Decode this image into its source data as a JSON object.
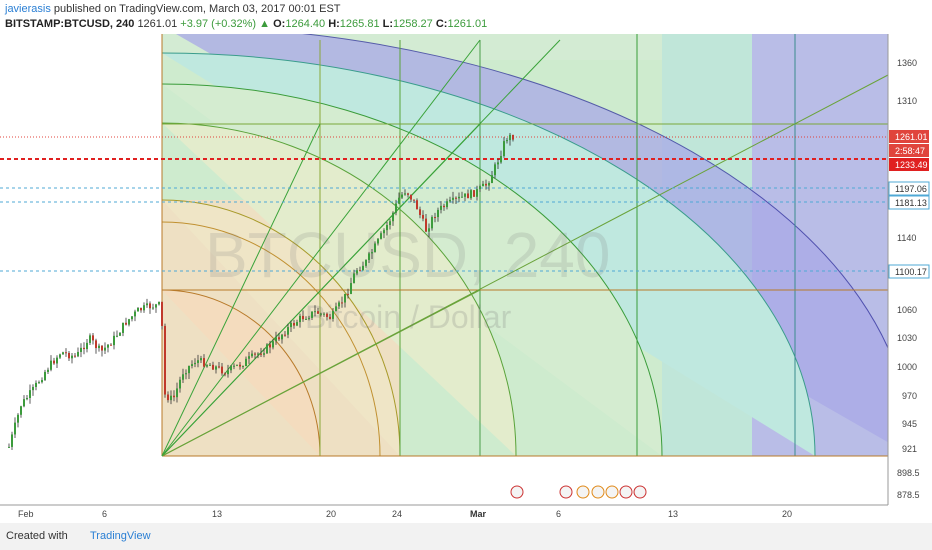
{
  "header": {
    "author": "javierasis",
    "published": "published on TradingView.com, March 03, 2017 00:01 EST",
    "symbol": "BITSTAMP:BTCUSD, 240",
    "last": "1261.01",
    "change": "+3.97 (+0.32%)",
    "o_label": "O:",
    "o_value": "1264.40",
    "h_label": "H:",
    "h_value": "1265.81",
    "l_label": "L:",
    "l_value": "1258.27",
    "c_label": "C:",
    "c_value": "1261.01"
  },
  "watermark": {
    "symbol": "BTCUSD, 240",
    "name": "Bitcoin / Dollar"
  },
  "footer": {
    "created": "Created with",
    "brand": "TradingView"
  },
  "colors": {
    "up": "#3c9b3c",
    "down": "#c0392b",
    "price_tag": "#e0443c",
    "support_line": "#4fa9d6",
    "red_line": "#e02020"
  },
  "chart_data": {
    "type": "candlestick",
    "y_ticks": [
      1360.0,
      1310.0,
      1261.01,
      1233.49,
      1197.06,
      1181.13,
      1140.0,
      1100.17,
      1060.0,
      1030.0,
      1000.0,
      970.0,
      945.0,
      921.0,
      898.5,
      878.5
    ],
    "x_ticks": [
      "Feb",
      "6",
      "13",
      "20",
      "24",
      "Mar",
      "6",
      "13",
      "20"
    ],
    "price_labels": [
      {
        "value": "1261.01",
        "kind": "last"
      },
      {
        "value": "2:58:47",
        "kind": "countdown"
      },
      {
        "value": "1233.49",
        "kind": "red-line"
      },
      {
        "value": "1197.06",
        "kind": "line"
      },
      {
        "value": "1181.13",
        "kind": "line"
      },
      {
        "value": "1100.17",
        "kind": "line"
      }
    ],
    "close_path": [
      {
        "x": 8,
        "y": 447
      },
      {
        "x": 20,
        "y": 405
      },
      {
        "x": 32,
        "y": 390
      },
      {
        "x": 45,
        "y": 370
      },
      {
        "x": 60,
        "y": 352
      },
      {
        "x": 75,
        "y": 357
      },
      {
        "x": 88,
        "y": 338
      },
      {
        "x": 100,
        "y": 352
      },
      {
        "x": 112,
        "y": 340
      },
      {
        "x": 125,
        "y": 322
      },
      {
        "x": 138,
        "y": 310
      },
      {
        "x": 150,
        "y": 306
      },
      {
        "x": 160,
        "y": 305
      },
      {
        "x": 164,
        "y": 395
      },
      {
        "x": 172,
        "y": 400
      },
      {
        "x": 182,
        "y": 372
      },
      {
        "x": 195,
        "y": 360
      },
      {
        "x": 210,
        "y": 365
      },
      {
        "x": 225,
        "y": 372
      },
      {
        "x": 240,
        "y": 364
      },
      {
        "x": 255,
        "y": 355
      },
      {
        "x": 270,
        "y": 345
      },
      {
        "x": 285,
        "y": 330
      },
      {
        "x": 300,
        "y": 318
      },
      {
        "x": 315,
        "y": 312
      },
      {
        "x": 330,
        "y": 318
      },
      {
        "x": 345,
        "y": 295
      },
      {
        "x": 355,
        "y": 270
      },
      {
        "x": 365,
        "y": 262
      },
      {
        "x": 378,
        "y": 240
      },
      {
        "x": 390,
        "y": 218
      },
      {
        "x": 398,
        "y": 198
      },
      {
        "x": 405,
        "y": 190
      },
      {
        "x": 415,
        "y": 205
      },
      {
        "x": 425,
        "y": 230
      },
      {
        "x": 435,
        "y": 212
      },
      {
        "x": 445,
        "y": 205
      },
      {
        "x": 460,
        "y": 198
      },
      {
        "x": 475,
        "y": 192
      },
      {
        "x": 485,
        "y": 185
      },
      {
        "x": 492,
        "y": 172
      },
      {
        "x": 498,
        "y": 158
      },
      {
        "x": 505,
        "y": 138
      },
      {
        "x": 512,
        "y": 136
      }
    ]
  }
}
